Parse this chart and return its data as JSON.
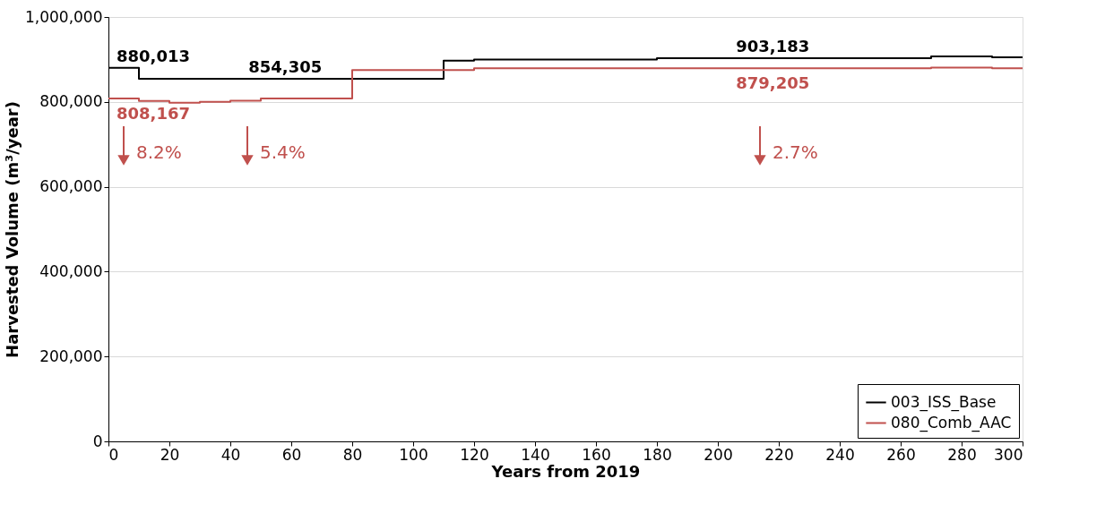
{
  "chart_data": {
    "type": "step",
    "xlabel": "Years from 2019",
    "ylabel": "Harvested Volume (m³/year)",
    "xlim": [
      0,
      300
    ],
    "xticks": [
      0,
      20,
      40,
      60,
      80,
      100,
      120,
      140,
      160,
      180,
      200,
      220,
      240,
      260,
      280,
      300
    ],
    "ylim": [
      0,
      1000000
    ],
    "yticks": [
      {
        "value": 0,
        "label": "0"
      },
      {
        "value": 200000,
        "label": "200,000"
      },
      {
        "value": 400000,
        "label": "400,000"
      },
      {
        "value": 600000,
        "label": "600,000"
      },
      {
        "value": 800000,
        "label": "800,000"
      },
      {
        "value": 1000000,
        "label": "1,000,000"
      }
    ],
    "grid": "y",
    "legend": "bottom right",
    "series": [
      {
        "name": "003_ISS_Base",
        "color": "#000000",
        "x": [
          0,
          10,
          110,
          120,
          180,
          270,
          290,
          300
        ],
        "values": [
          880013,
          854305,
          897000,
          900000,
          903183,
          907000,
          905000,
          905000
        ]
      },
      {
        "name": "080_Comb_AAC",
        "color": "#c0504d",
        "x": [
          0,
          10,
          20,
          30,
          40,
          50,
          80,
          120,
          270,
          290,
          300
        ],
        "values": [
          808167,
          802000,
          798000,
          800000,
          803000,
          808000,
          875000,
          879205,
          881000,
          879205,
          879205
        ]
      }
    ],
    "annotations": [
      {
        "text": "880,013",
        "x": 5,
        "y": 880013
      },
      {
        "text": "808,167",
        "x": 5,
        "y": 808167
      },
      {
        "text": "854,305",
        "x": 58,
        "y": 854305
      },
      {
        "text": "903,183",
        "x": 218,
        "y": 903183
      },
      {
        "text": "879,205",
        "x": 218,
        "y": 879205
      },
      "8.2%",
      "5.4%",
      "2.7%"
    ]
  }
}
